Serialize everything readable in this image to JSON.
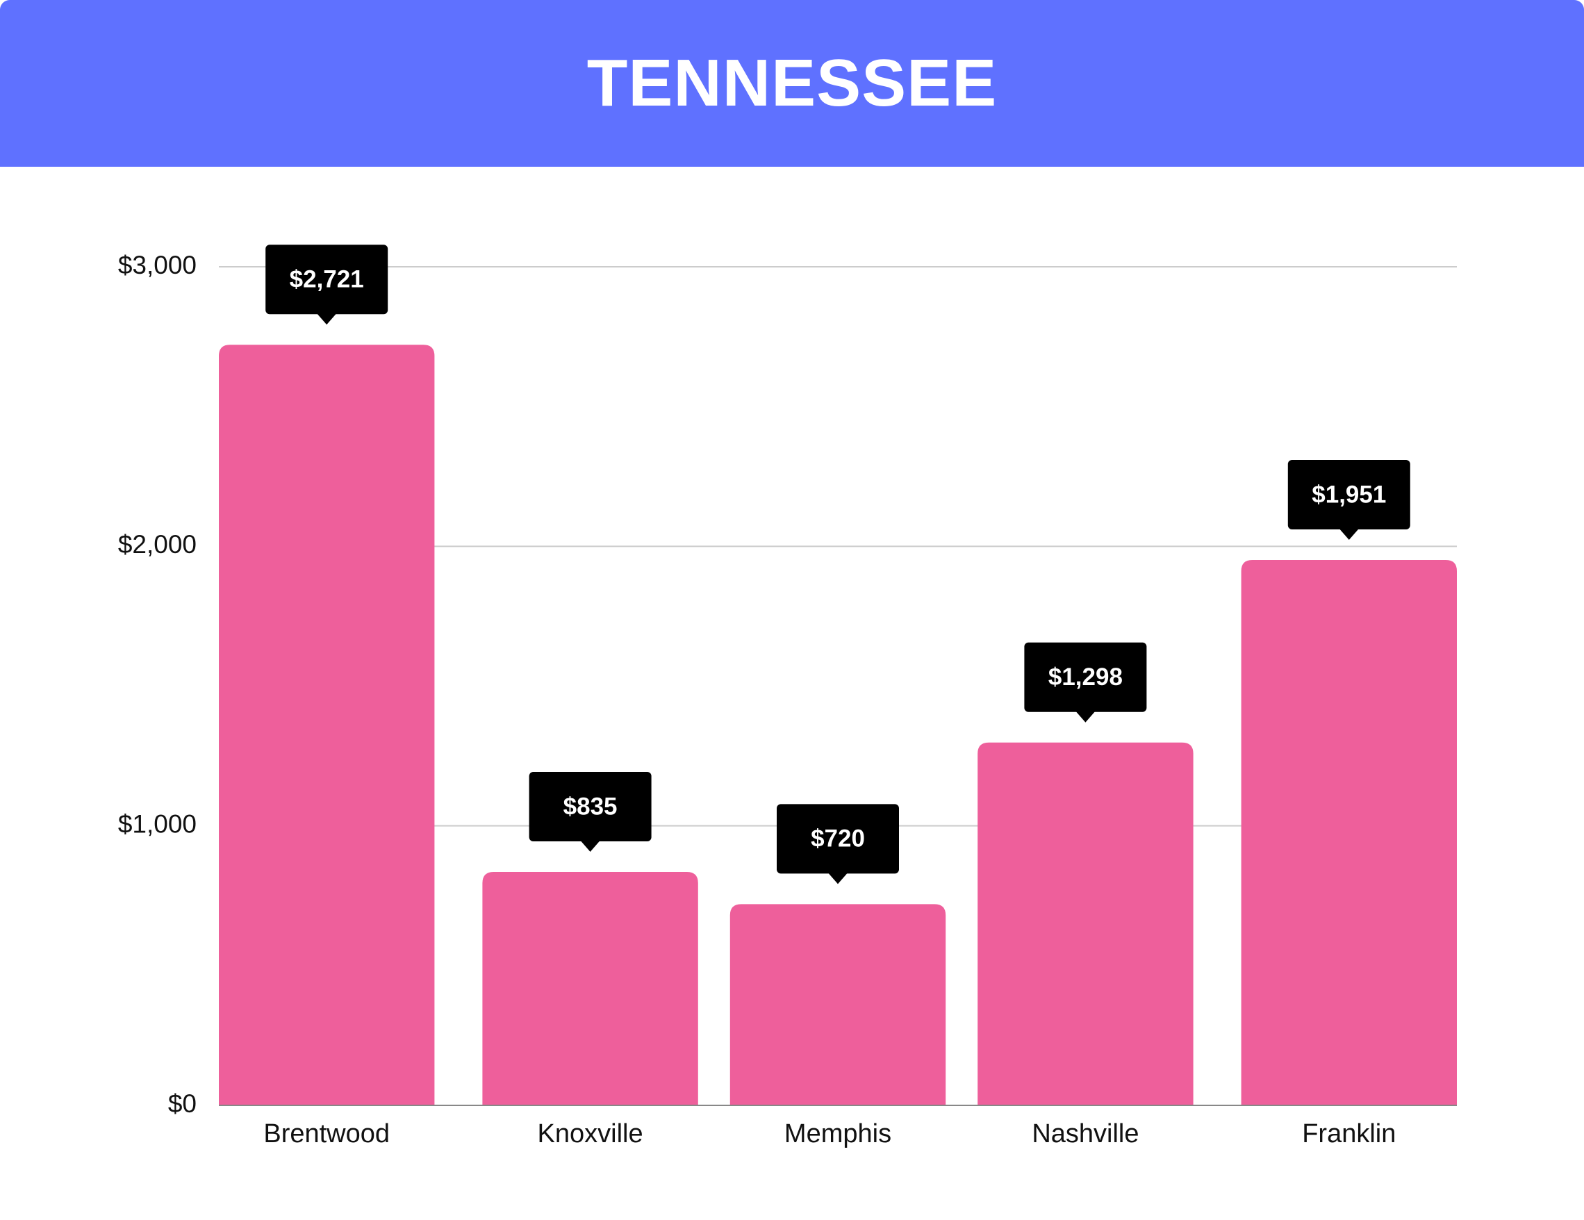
{
  "colors": {
    "header_bg": "#5f71ff",
    "bar": "#ee5f9b",
    "label_bg": "#000000",
    "label_text": "#ffffff",
    "grid": "#cccccc",
    "axis": "#888888"
  },
  "chart_data": {
    "type": "bar",
    "title": "TENNESSEE",
    "categories": [
      "Brentwood",
      "Knoxville",
      "Memphis",
      "Nashville",
      "Franklin"
    ],
    "values": [
      2721,
      835,
      720,
      1298,
      1951
    ],
    "value_labels": [
      "$2,721",
      "$835",
      "$720",
      "$1,298",
      "$1,951"
    ],
    "yticks": [
      0,
      1000,
      2000,
      3000
    ],
    "ytick_labels": [
      "$0",
      "$1,000",
      "$2,000",
      "$3,000"
    ],
    "ylim": [
      0,
      3000
    ],
    "grid": true,
    "legend": "none",
    "xlabel": "",
    "ylabel": ""
  }
}
